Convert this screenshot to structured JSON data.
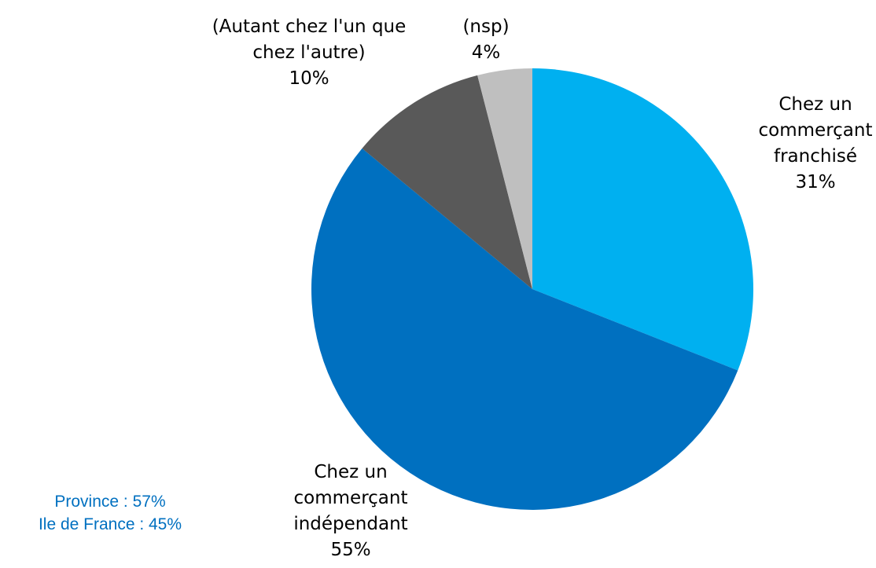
{
  "chart_data": {
    "type": "pie",
    "categories": [
      "Chez un commerçant franchisé",
      "Chez un commerçant indépendant",
      "(Autant chez l'un que chez l'autre)",
      "(nsp)"
    ],
    "values": [
      31,
      55,
      10,
      4
    ],
    "value_labels": [
      "31%",
      "55%",
      "10%",
      "4%"
    ],
    "colors": [
      "#00b0f0",
      "#0070c0",
      "#595959",
      "#bfbfbf"
    ],
    "annotations": [
      "Province : 57%",
      "Ile de France : 45%"
    ]
  }
}
